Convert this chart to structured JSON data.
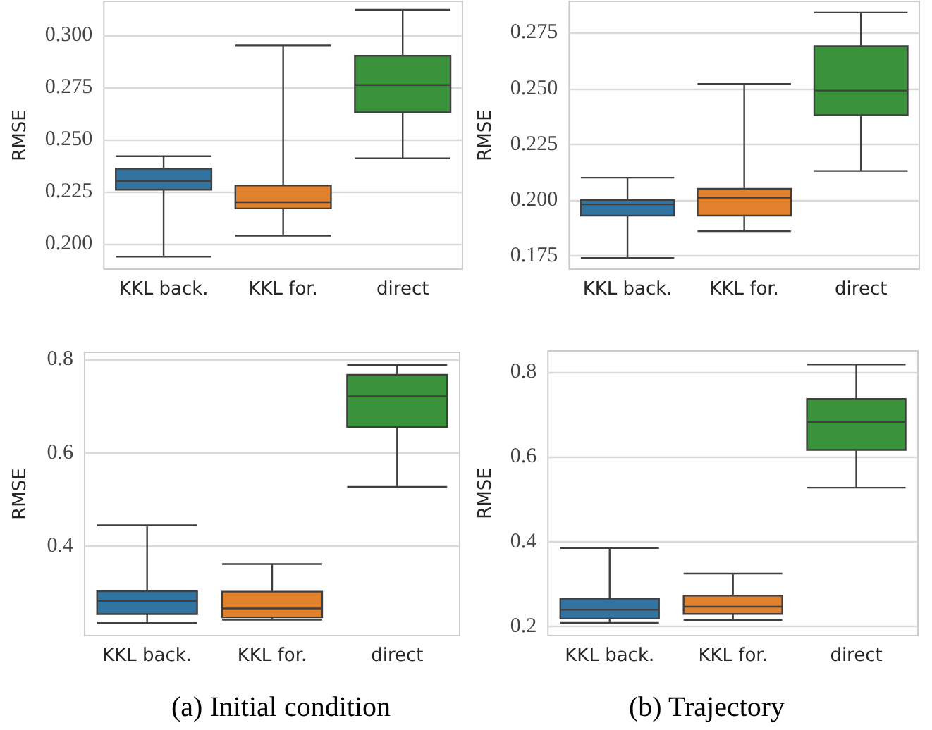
{
  "chart_data": [
    {
      "type": "box",
      "ylabel": "RMSE",
      "categories": [
        "KKL back.",
        "KKL for.",
        "direct"
      ],
      "colors": [
        "#3274a1",
        "#e1812c",
        "#3a923a"
      ],
      "grid": "y",
      "ylim": [
        0.188,
        0.316
      ],
      "yticks": [
        {
          "value": 0.2,
          "label": "0.200"
        },
        {
          "value": 0.225,
          "label": "0.225"
        },
        {
          "value": 0.25,
          "label": "0.250"
        },
        {
          "value": 0.275,
          "label": "0.275"
        },
        {
          "value": 0.3,
          "label": "0.300"
        }
      ],
      "boxes": [
        {
          "low": 0.194,
          "q1": 0.226,
          "median": 0.23,
          "q3": 0.236,
          "high": 0.242
        },
        {
          "low": 0.204,
          "q1": 0.217,
          "median": 0.22,
          "q3": 0.228,
          "high": 0.295
        },
        {
          "low": 0.241,
          "q1": 0.263,
          "median": 0.276,
          "q3": 0.29,
          "high": 0.312
        }
      ]
    },
    {
      "type": "box",
      "ylabel": "RMSE",
      "categories": [
        "KKL back.",
        "KKL for.",
        "direct"
      ],
      "colors": [
        "#3274a1",
        "#e1812c",
        "#3a923a"
      ],
      "grid": "y",
      "ylim": [
        0.169,
        0.289
      ],
      "yticks": [
        {
          "value": 0.175,
          "label": "0.175"
        },
        {
          "value": 0.2,
          "label": "0.200"
        },
        {
          "value": 0.225,
          "label": "0.225"
        },
        {
          "value": 0.25,
          "label": "0.250"
        },
        {
          "value": 0.275,
          "label": "0.275"
        }
      ],
      "boxes": [
        {
          "low": 0.174,
          "q1": 0.193,
          "median": 0.198,
          "q3": 0.2,
          "high": 0.21
        },
        {
          "low": 0.186,
          "q1": 0.193,
          "median": 0.201,
          "q3": 0.205,
          "high": 0.252
        },
        {
          "low": 0.213,
          "q1": 0.238,
          "median": 0.249,
          "q3": 0.269,
          "high": 0.284
        }
      ]
    },
    {
      "type": "box",
      "ylabel": "RMSE",
      "categories": [
        "KKL back.",
        "KKL for.",
        "direct"
      ],
      "colors": [
        "#3274a1",
        "#e1812c",
        "#3a923a"
      ],
      "grid": "y",
      "ylim": [
        0.209,
        0.815
      ],
      "yticks": [
        0.4,
        0.6,
        0.8
      ],
      "annotations": [
        "(a) Initial condition"
      ],
      "boxes": [
        {
          "low": 0.236,
          "q1": 0.255,
          "median": 0.283,
          "q3": 0.304,
          "high": 0.445
        },
        {
          "low": 0.243,
          "q1": 0.248,
          "median": 0.267,
          "q3": 0.303,
          "high": 0.362
        },
        {
          "low": 0.527,
          "q1": 0.655,
          "median": 0.721,
          "q3": 0.767,
          "high": 0.788
        }
      ]
    },
    {
      "type": "box",
      "ylabel": "RMSE",
      "categories": [
        "KKL back.",
        "KKL for.",
        "direct"
      ],
      "colors": [
        "#3274a1",
        "#e1812c",
        "#3a923a"
      ],
      "grid": "y",
      "ylim": [
        0.179,
        0.849
      ],
      "yticks": [
        0.2,
        0.4,
        0.6,
        0.8
      ],
      "annotations": [
        "(b) Trajectory"
      ],
      "boxes": [
        {
          "low": 0.209,
          "q1": 0.219,
          "median": 0.24,
          "q3": 0.266,
          "high": 0.385
        },
        {
          "low": 0.216,
          "q1": 0.23,
          "median": 0.247,
          "q3": 0.273,
          "high": 0.325
        },
        {
          "low": 0.527,
          "q1": 0.616,
          "median": 0.682,
          "q3": 0.736,
          "high": 0.817
        }
      ]
    }
  ]
}
